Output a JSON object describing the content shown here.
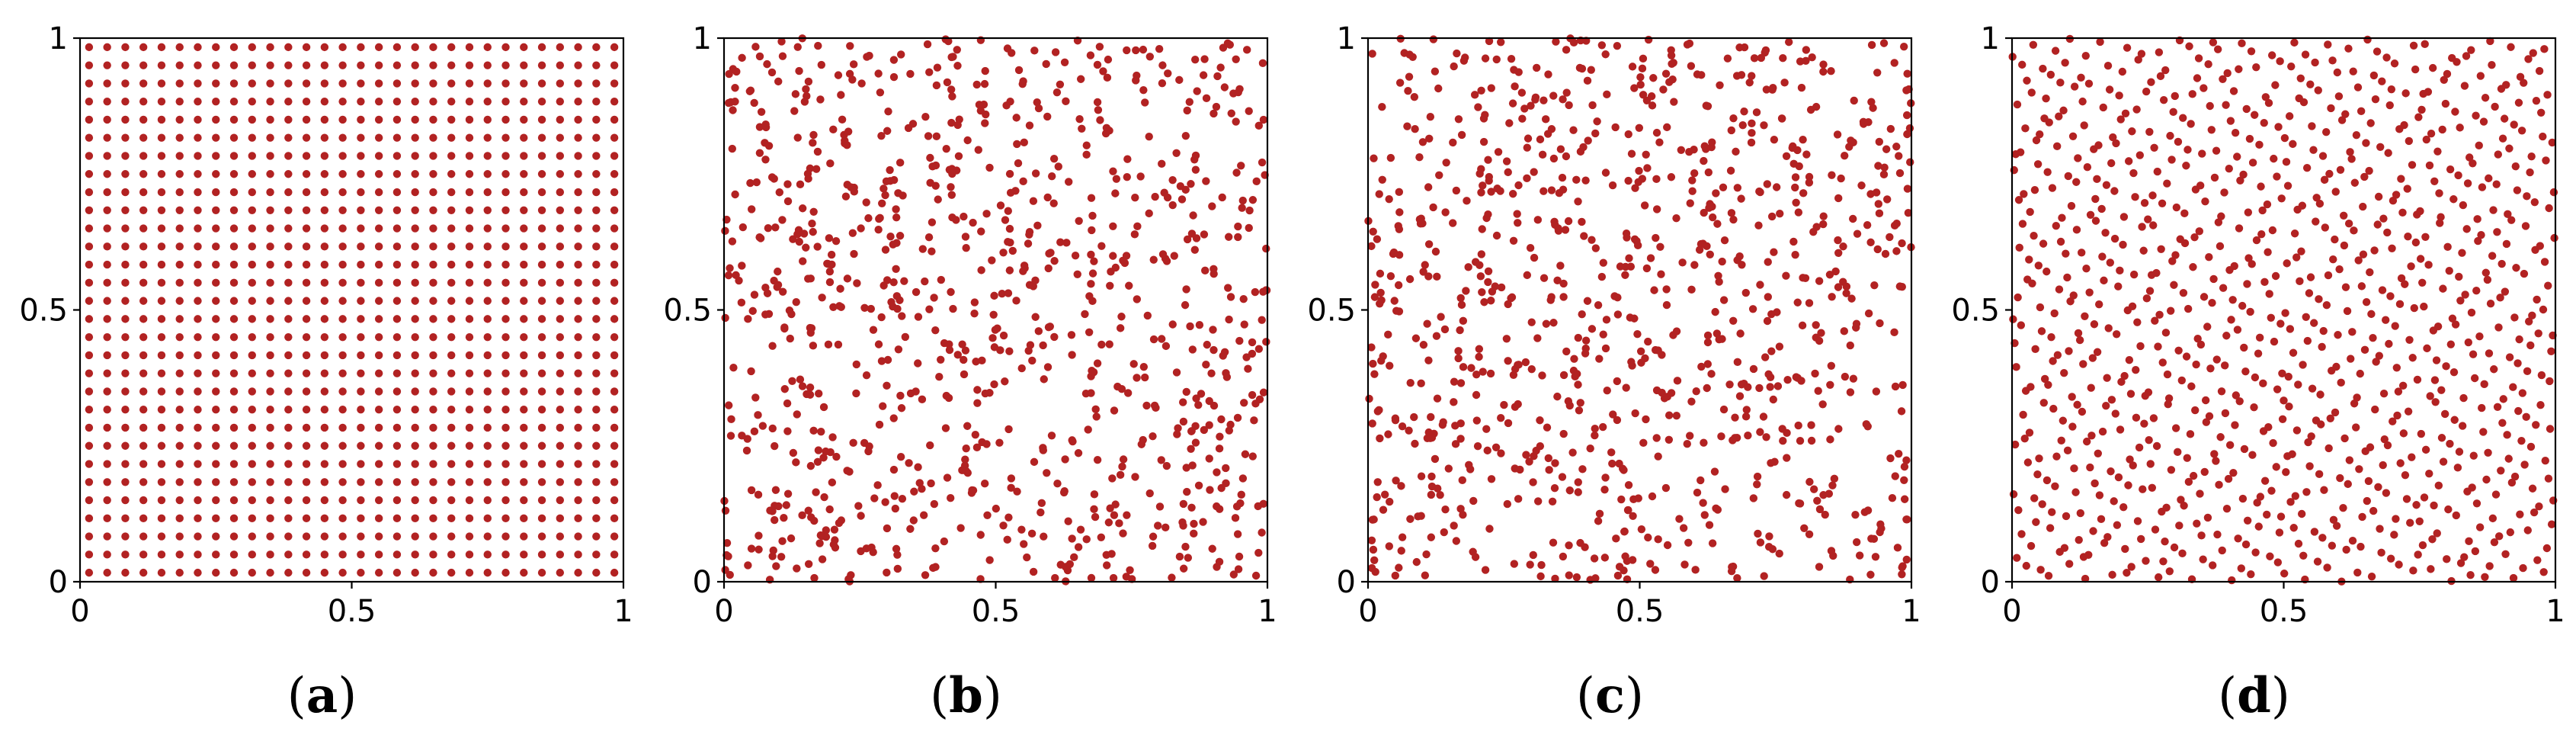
{
  "chart_data": [
    {
      "type": "scatter",
      "label": "a",
      "pattern": "grid",
      "grid_size": 30,
      "xlim": [
        0,
        1
      ],
      "ylim": [
        0,
        1
      ],
      "xticks": [
        "0",
        "0.5",
        "1"
      ],
      "yticks": [
        "0",
        "0.5",
        "1"
      ],
      "marker_color": "#b22222"
    },
    {
      "type": "scatter",
      "label": "b",
      "pattern": "random",
      "point_count": 900,
      "seed": 11,
      "xlim": [
        0,
        1
      ],
      "ylim": [
        0,
        1
      ],
      "xticks": [
        "0",
        "0.5",
        "1"
      ],
      "yticks": [
        "0",
        "0.5",
        "1"
      ],
      "marker_color": "#b22222"
    },
    {
      "type": "scatter",
      "label": "c",
      "pattern": "random",
      "point_count": 900,
      "seed": 37,
      "xlim": [
        0,
        1
      ],
      "ylim": [
        0,
        1
      ],
      "xticks": [
        "0",
        "0.5",
        "1"
      ],
      "yticks": [
        "0",
        "0.5",
        "1"
      ],
      "marker_color": "#b22222"
    },
    {
      "type": "scatter",
      "label": "d",
      "pattern": "quasi-random",
      "point_count": 900,
      "xlim": [
        0,
        1
      ],
      "ylim": [
        0,
        1
      ],
      "xticks": [
        "0",
        "0.5",
        "1"
      ],
      "yticks": [
        "0",
        "0.5",
        "1"
      ],
      "marker_color": "#b22222"
    }
  ]
}
